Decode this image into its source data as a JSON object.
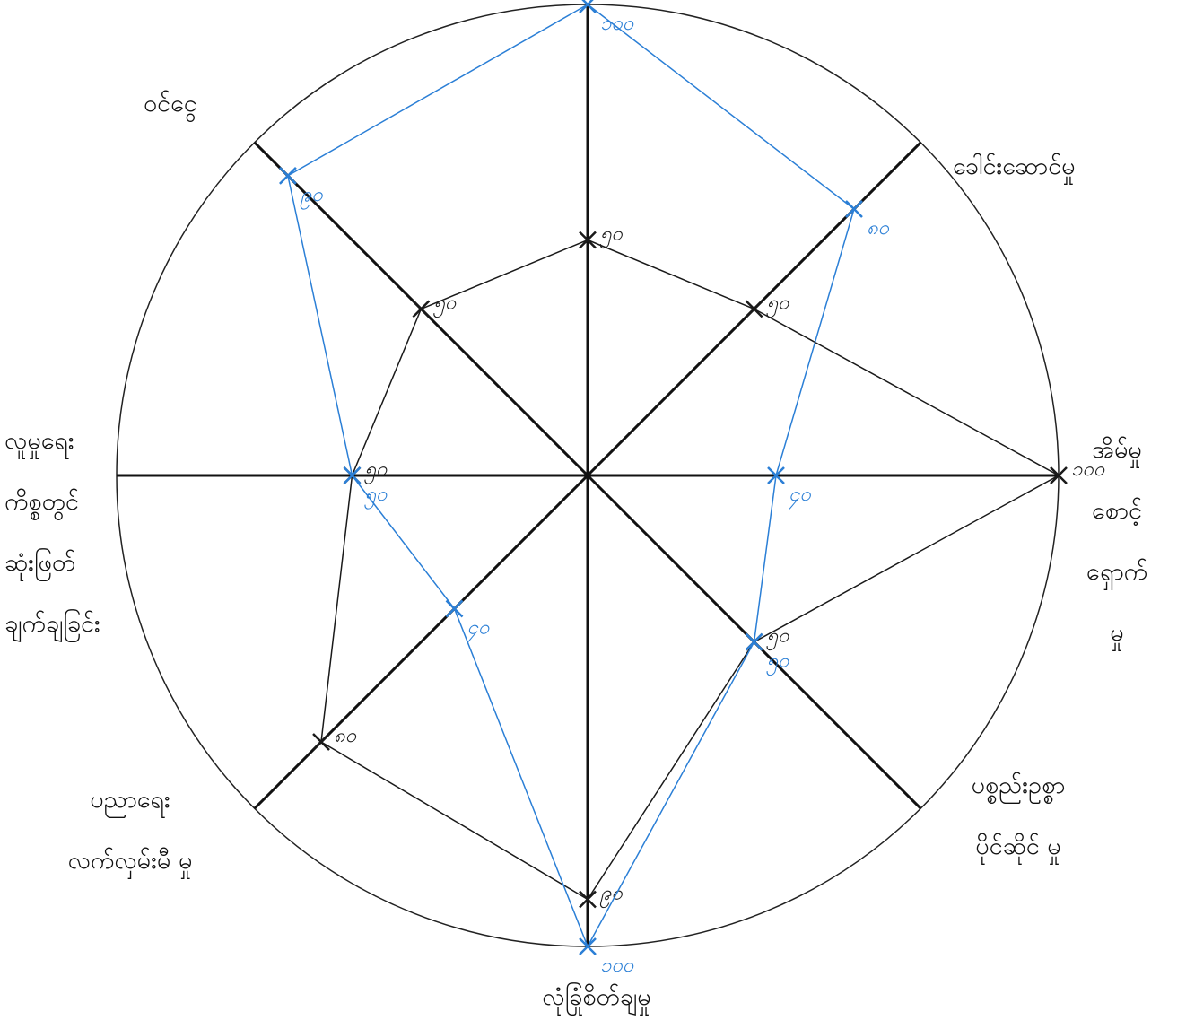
{
  "chart_data": {
    "type": "radar",
    "categories": [
      null,
      "ခေါင်းဆောင်မှု",
      "အိမ်မှု\nစောင့်\nရှောက်\nမှု",
      "ပစ္စည်းဥစ္စာ\nပိုင်ဆိုင် မှု",
      "လုံခြုံစိတ်ချမှု",
      "ပညာရေး\nလက်လှမ်းမီ မှု",
      "လူမှုရေး\nကိစ္စတွင်\nဆုံးဖြတ်\nချက်ချခြင်း",
      "ဝင်ငွေ"
    ],
    "rlim": [
      0,
      100
    ],
    "series": [
      {
        "color": "#1a1a1a",
        "values": [
          50,
          50,
          100,
          50,
          90,
          80,
          50,
          50
        ],
        "value_labels": [
          "၅၀",
          "၅၀",
          "၁၀၀",
          "၅၀",
          "၉၀",
          "၈၀",
          "၅၀",
          "၅၀"
        ]
      },
      {
        "color": "#2b7fd6",
        "values": [
          100,
          80,
          40,
          50,
          100,
          40,
          50,
          90
        ],
        "value_labels": [
          "၁၀၀",
          "၈၀",
          "၄၀",
          "၅၀",
          "၁၀၀",
          "၄၀",
          "၅၀",
          "၉၀"
        ]
      }
    ]
  }
}
